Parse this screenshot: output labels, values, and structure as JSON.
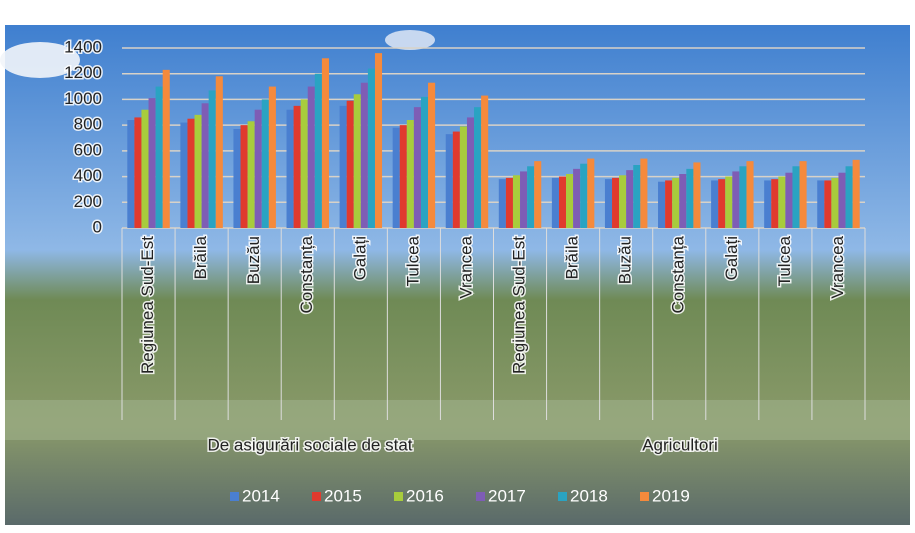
{
  "chart_data": {
    "type": "bar",
    "groups": [
      {
        "label": "De asigurări sociale de stat",
        "categories": [
          "Regiunea Sud-Est",
          "Brăila",
          "Buzău",
          "Constanța",
          "Galați",
          "Tulcea",
          "Vrancea"
        ]
      },
      {
        "label": "Agricultori",
        "categories": [
          "Regiunea Sud-Est",
          "Brăila",
          "Buzău",
          "Constanța",
          "Galați",
          "Tulcea",
          "Vrancea"
        ]
      }
    ],
    "series": [
      {
        "name": "2014",
        "color": "#4a7fd0",
        "values": [
          840,
          820,
          770,
          920,
          950,
          780,
          730,
          380,
          390,
          380,
          360,
          370,
          370,
          370
        ]
      },
      {
        "name": "2015",
        "color": "#e03a2e",
        "values": [
          860,
          850,
          800,
          950,
          990,
          800,
          750,
          390,
          400,
          390,
          370,
          380,
          380,
          370
        ]
      },
      {
        "name": "2016",
        "color": "#a8cc3c",
        "values": [
          920,
          880,
          830,
          1000,
          1040,
          840,
          790,
          410,
          420,
          410,
          390,
          400,
          400,
          390
        ]
      },
      {
        "name": "2017",
        "color": "#7e5db5",
        "values": [
          1010,
          970,
          920,
          1100,
          1130,
          940,
          860,
          440,
          460,
          450,
          420,
          440,
          430,
          430
        ]
      },
      {
        "name": "2018",
        "color": "#2aa3c2",
        "values": [
          1100,
          1070,
          1000,
          1200,
          1240,
          1020,
          940,
          480,
          500,
          490,
          460,
          480,
          480,
          480
        ]
      },
      {
        "name": "2019",
        "color": "#f58a3c",
        "values": [
          1230,
          1180,
          1100,
          1320,
          1360,
          1130,
          1030,
          520,
          540,
          540,
          510,
          520,
          520,
          530
        ]
      }
    ],
    "ylim": [
      0,
      1400
    ],
    "yticks": [
      0,
      200,
      400,
      600,
      800,
      1000,
      1200,
      1400
    ],
    "grid": true,
    "legend": "bottom"
  }
}
